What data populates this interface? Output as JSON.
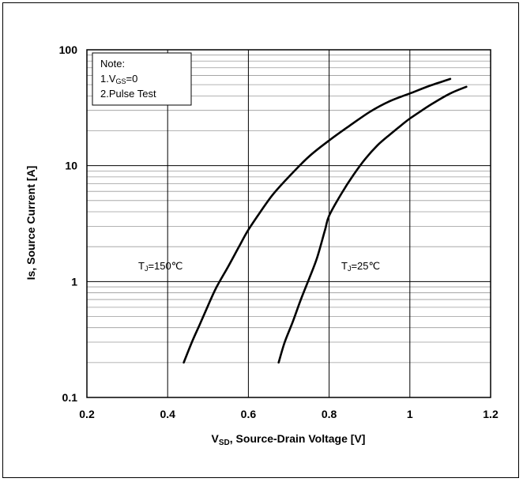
{
  "chart_data": {
    "type": "line",
    "xlabel": {
      "main": "V",
      "sub": "SD",
      "rest": ", Source-Drain Voltage [V]"
    },
    "ylabel": "Is, Source Current [A]",
    "xlim": [
      0.2,
      1.2
    ],
    "ylim": [
      0.1,
      100
    ],
    "yscale": "log",
    "xticks": [
      0.2,
      0.4,
      0.6,
      0.8,
      1.0,
      1.2
    ],
    "xtick_labels": [
      "0.2",
      "0.4",
      "0.6",
      "0.8",
      "1",
      "1.2"
    ],
    "yticks": [
      0.1,
      1,
      10,
      100
    ],
    "ytick_labels": [
      "0.1",
      "1",
      "10",
      "100"
    ],
    "grid": true,
    "note": {
      "title": "Note:",
      "line1": {
        "main": "1.V",
        "sub": "GS",
        "rest": "=0"
      },
      "line2": "2.Pulse Test"
    },
    "series": [
      {
        "name": {
          "main": "T",
          "sub": "J",
          "rest": "=150℃"
        },
        "x": [
          0.44,
          0.46,
          0.48,
          0.5,
          0.52,
          0.55,
          0.58,
          0.6,
          0.63,
          0.66,
          0.7,
          0.75,
          0.8,
          0.85,
          0.9,
          0.95,
          1.0,
          1.05,
          1.1
        ],
        "y": [
          0.2,
          0.3,
          0.43,
          0.62,
          0.88,
          1.35,
          2.1,
          2.8,
          4.0,
          5.6,
          8.0,
          12.0,
          16.5,
          22.0,
          29.0,
          36.0,
          42.0,
          49.0,
          56.0
        ]
      },
      {
        "name": {
          "main": "T",
          "sub": "J",
          "rest": "=25℃"
        },
        "x": [
          0.675,
          0.69,
          0.71,
          0.73,
          0.75,
          0.77,
          0.79,
          0.8,
          0.83,
          0.86,
          0.89,
          0.92,
          0.95,
          0.98,
          1.0,
          1.03,
          1.06,
          1.1,
          1.14
        ],
        "y": [
          0.2,
          0.3,
          0.45,
          0.7,
          1.05,
          1.6,
          2.8,
          3.7,
          5.7,
          8.3,
          11.5,
          15.0,
          18.5,
          22.5,
          25.5,
          30.0,
          35.0,
          42.0,
          48.0
        ]
      }
    ]
  }
}
